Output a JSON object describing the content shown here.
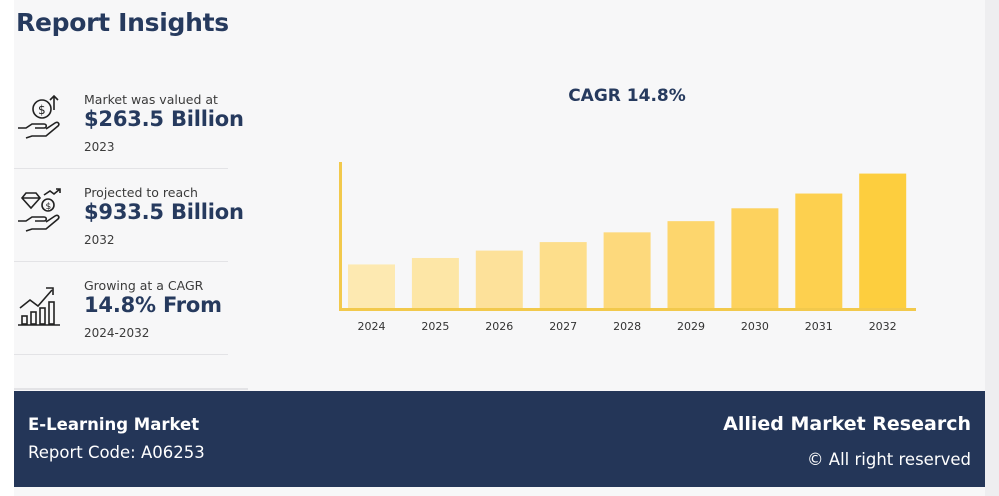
{
  "header": {
    "title": "Report Insights"
  },
  "stats": [
    {
      "icon": "money-hand-icon",
      "label": "Market was valued at",
      "value": "$263.5 Billion",
      "sub": "2023"
    },
    {
      "icon": "diamond-hand-icon",
      "label": "Projected to reach",
      "value": "$933.5 Billion",
      "sub": "2032"
    },
    {
      "icon": "growth-chart-icon",
      "label": "Growing at a CAGR",
      "value": "14.8% From",
      "sub": "2024-2032"
    }
  ],
  "chart_data": {
    "type": "bar",
    "title": "CAGR 14.8%",
    "categories": [
      "2024",
      "2025",
      "2026",
      "2027",
      "2028",
      "2029",
      "2030",
      "2031",
      "2032"
    ],
    "values": [
      302.5,
      347.3,
      398.7,
      457.7,
      525.4,
      603.1,
      692.4,
      794.9,
      933.5
    ],
    "colors": [
      "#fde9b1",
      "#fde6a6",
      "#fde19a",
      "#fdde8b",
      "#fdd97c",
      "#fdd66d",
      "#fdd25e",
      "#fdd04f",
      "#fdce3e"
    ],
    "axis_color": "#f2c94c",
    "ylim": [
      0,
      1000
    ],
    "grid": false
  },
  "footer": {
    "market": "E-Learning Market",
    "report_code": "Report Code: A06253",
    "brand": "Allied Market Research",
    "rights": "© All right reserved"
  }
}
